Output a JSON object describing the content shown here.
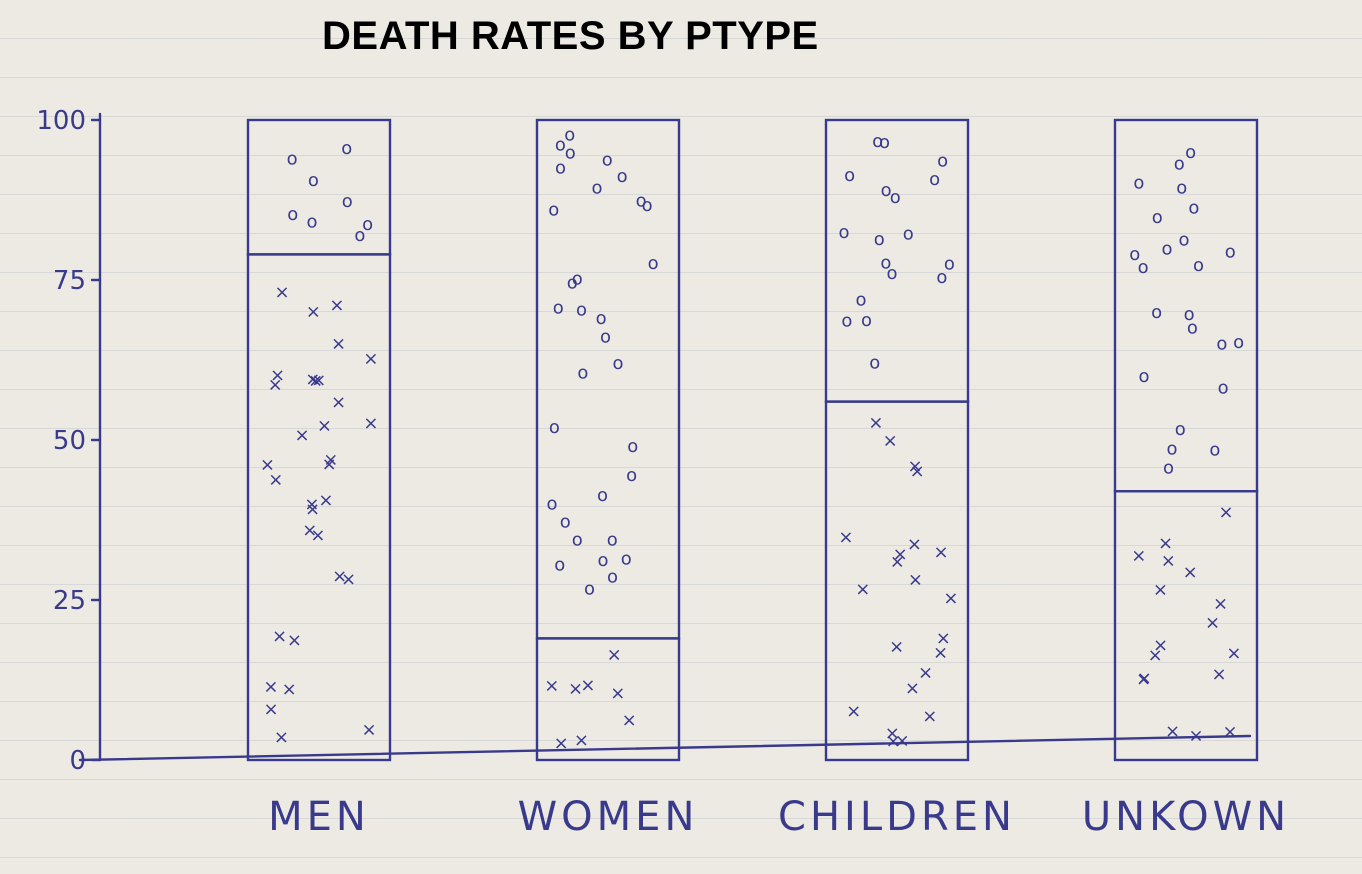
{
  "chart_data": {
    "type": "bar",
    "stacked": true,
    "title": "DEATH RATES BY PTYPE",
    "xlabel": "",
    "ylabel": "",
    "categories": [
      "MEN",
      "WOMEN",
      "CHILDREN",
      "UNKOWN"
    ],
    "ylim": [
      0,
      100
    ],
    "yticks": [
      0,
      25,
      50,
      75,
      100
    ],
    "ytick_labels": [
      "0",
      "25",
      "50",
      "75",
      "100"
    ],
    "series": [
      {
        "marker": "x",
        "values": [
          79,
          19,
          56,
          42
        ]
      },
      {
        "marker": "o",
        "values": [
          21,
          81,
          44,
          58
        ]
      }
    ],
    "colors": {
      "ink": "#3a3a8c",
      "paper": "#eceae3"
    },
    "grid": false,
    "legend": "none"
  }
}
